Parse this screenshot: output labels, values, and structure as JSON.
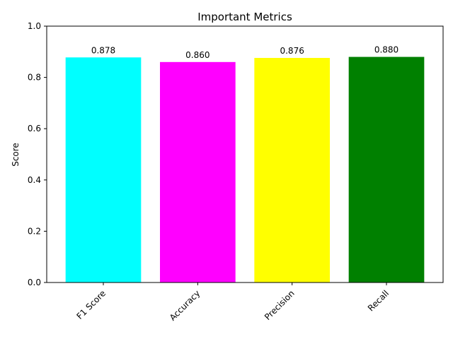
{
  "chart_data": {
    "type": "bar",
    "title": "Important Metrics",
    "xlabel": "",
    "ylabel": "Score",
    "categories": [
      "F1 Score",
      "Accuracy",
      "Precision",
      "Recall"
    ],
    "values": [
      0.878,
      0.86,
      0.876,
      0.88
    ],
    "data_labels": [
      "0.878",
      "0.860",
      "0.876",
      "0.880"
    ],
    "colors": [
      "#00ffff",
      "#ff00ff",
      "#ffff00",
      "#008000"
    ],
    "ylim": [
      0,
      1.0
    ],
    "yticks": [
      0.0,
      0.2,
      0.4,
      0.6,
      0.8,
      1.0
    ],
    "ytick_labels": [
      "0.0",
      "0.2",
      "0.4",
      "0.6",
      "0.8",
      "1.0"
    ],
    "xtick_rotation": 45,
    "grid": false,
    "legend": false
  }
}
